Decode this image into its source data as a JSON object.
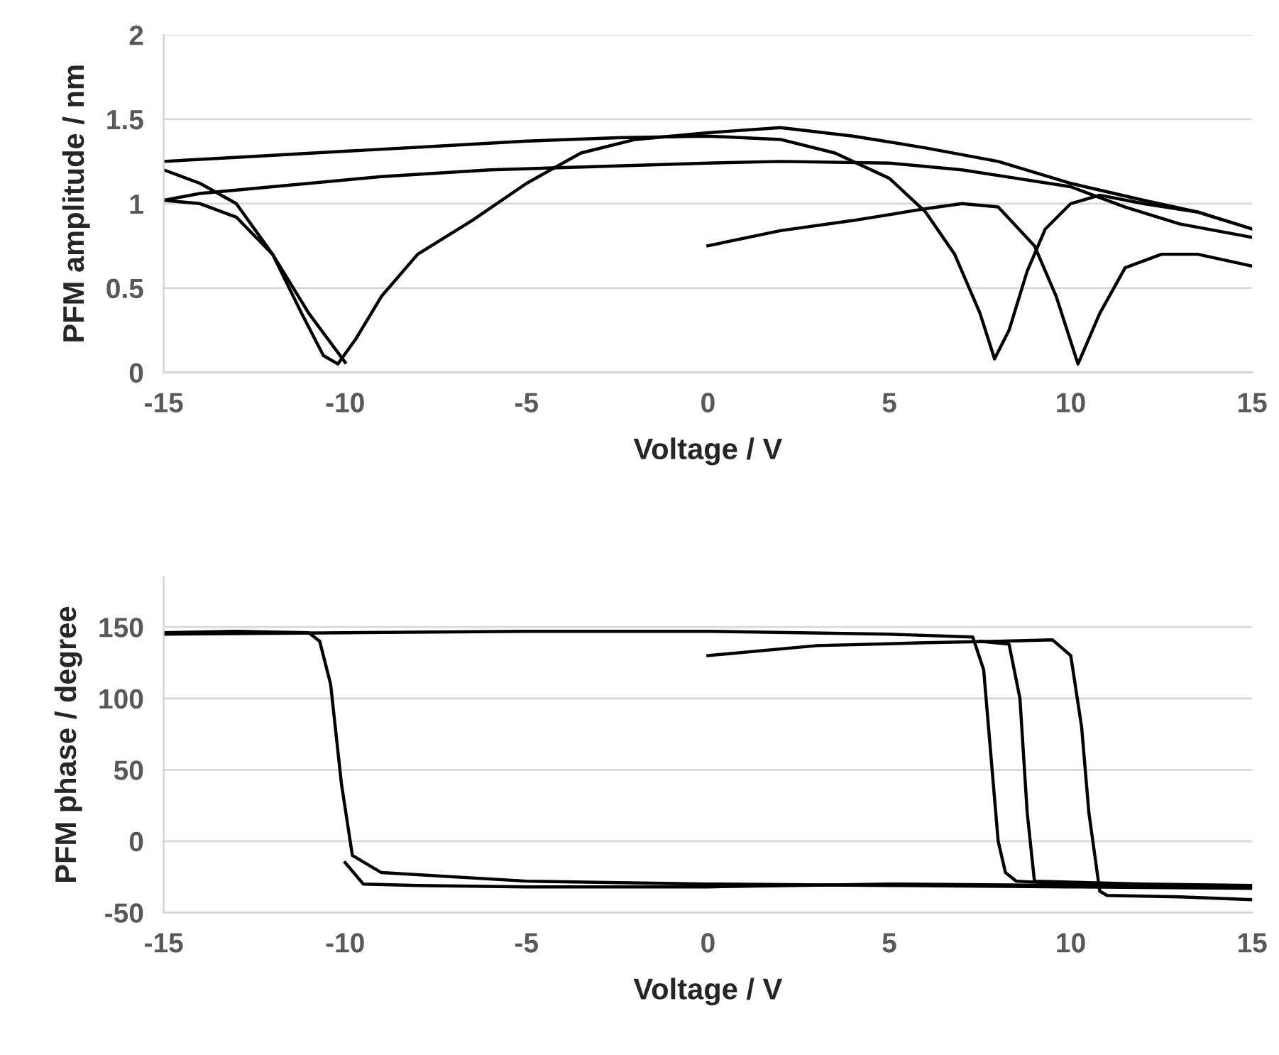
{
  "chart_data": [
    {
      "type": "line",
      "xlabel": "Voltage / V",
      "ylabel": "PFM amplitude / nm",
      "xlim": [
        -15,
        15
      ],
      "xticks": [
        -15,
        -10,
        -5,
        0,
        5,
        10,
        15
      ],
      "ylim": [
        0,
        2
      ],
      "yticks": [
        0,
        0.5,
        1,
        1.5,
        2
      ],
      "grid": "y",
      "marker": "none",
      "line_style": "solid",
      "series": [
        {
          "color": "#000000",
          "x": [
            -15,
            -12.5,
            -10,
            -7.5,
            -5,
            -2.5,
            0,
            2,
            3.5,
            5,
            6,
            6.8,
            7.5,
            7.9,
            8.3,
            8.8,
            9.3,
            10,
            10.8,
            12,
            13.5,
            15
          ],
          "values": [
            1.25,
            1.28,
            1.31,
            1.34,
            1.37,
            1.39,
            1.4,
            1.38,
            1.3,
            1.15,
            0.95,
            0.7,
            0.35,
            0.08,
            0.25,
            0.6,
            0.85,
            1.0,
            1.05,
            1.0,
            0.95,
            0.85
          ]
        },
        {
          "color": "#000000",
          "x": [
            15,
            13.5,
            12,
            10,
            8,
            6,
            4,
            2,
            0,
            -2,
            -3.5,
            -5,
            -6.5,
            -8,
            -9,
            -9.7,
            -10.2,
            -10.6,
            -11.2,
            -12,
            -13,
            -14,
            -15
          ],
          "values": [
            0.85,
            0.95,
            1.02,
            1.12,
            1.25,
            1.33,
            1.4,
            1.45,
            1.42,
            1.38,
            1.3,
            1.12,
            0.9,
            0.7,
            0.45,
            0.2,
            0.05,
            0.1,
            0.35,
            0.7,
            1.0,
            1.12,
            1.2
          ]
        },
        {
          "color": "#000000",
          "x": [
            0,
            2,
            4,
            6,
            7,
            8,
            9,
            9.6,
            10.2,
            10.8,
            11.5,
            12.5,
            13.5,
            15
          ],
          "values": [
            0.75,
            0.84,
            0.9,
            0.97,
            1.0,
            0.98,
            0.75,
            0.45,
            0.05,
            0.35,
            0.62,
            0.7,
            0.7,
            0.63
          ]
        },
        {
          "color": "#000000",
          "x": [
            15,
            13,
            11.5,
            10,
            8.5,
            7,
            5,
            2,
            0,
            -3,
            -6,
            -9,
            -12,
            -14,
            -15
          ],
          "values": [
            0.8,
            0.88,
            0.98,
            1.1,
            1.15,
            1.2,
            1.24,
            1.25,
            1.24,
            1.22,
            1.2,
            1.16,
            1.1,
            1.06,
            1.02
          ]
        },
        {
          "color": "#000000",
          "x": [
            -15,
            -14,
            -13,
            -12,
            -11,
            -10
          ],
          "values": [
            1.02,
            1.0,
            0.92,
            0.7,
            0.35,
            0.06
          ]
        }
      ]
    },
    {
      "type": "line",
      "xlabel": "Voltage / V",
      "ylabel": "PFM phase / degree",
      "xlim": [
        -15,
        15
      ],
      "xticks": [
        -15,
        -10,
        -5,
        0,
        5,
        10,
        15
      ],
      "ylim": [
        -50,
        185
      ],
      "yticks": [
        -50,
        0,
        50,
        100,
        150
      ],
      "grid": "y",
      "marker": "none",
      "line_style": "solid",
      "series": [
        {
          "color": "#000000",
          "x": [
            -15,
            -10,
            -5,
            0,
            5,
            7.3,
            7.6,
            7.8,
            8.0,
            8.2,
            8.5,
            10,
            15
          ],
          "values": [
            145,
            146,
            147,
            147,
            145,
            143,
            120,
            60,
            0,
            -22,
            -28,
            -30,
            -32
          ]
        },
        {
          "color": "#000000",
          "x": [
            15,
            10,
            5,
            0,
            -5,
            -9,
            -9.8,
            -10.1,
            -10.4,
            -10.7,
            -11,
            -13,
            -15
          ],
          "values": [
            -33,
            -32,
            -31,
            -30,
            -28,
            -22,
            -10,
            40,
            110,
            140,
            146,
            147,
            146
          ]
        },
        {
          "color": "#000000",
          "x": [
            0,
            3,
            6,
            8,
            9.5,
            10,
            10.3,
            10.5,
            10.8,
            11,
            13,
            15
          ],
          "values": [
            130,
            137,
            139,
            140,
            141,
            130,
            80,
            20,
            -35,
            -38,
            -39,
            -41
          ]
        },
        {
          "color": "#000000",
          "x": [
            7.5,
            8.3,
            8.6,
            8.8,
            9.0,
            12,
            15
          ],
          "values": [
            140,
            138,
            100,
            20,
            -28,
            -30,
            -31
          ]
        },
        {
          "color": "#000000",
          "x": [
            -10,
            -9.5,
            -8,
            -5,
            0,
            5,
            10
          ],
          "values": [
            -15,
            -30,
            -31,
            -32,
            -32,
            -30,
            -31
          ]
        }
      ]
    }
  ]
}
